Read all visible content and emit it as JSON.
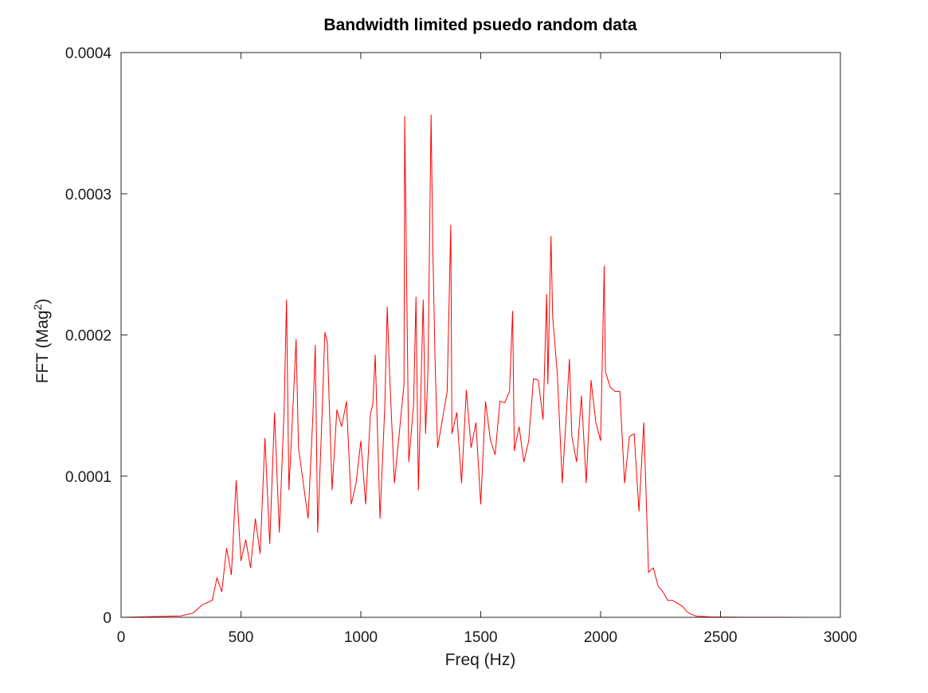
{
  "chart_data": {
    "type": "line",
    "title": "Bandwidth limited psuedo random data",
    "xlabel": "Freq (Hz)",
    "ylabel": {
      "prefix": "FFT (Mag",
      "superscript": "2",
      "suffix": ")"
    },
    "xlim": [
      0,
      3000
    ],
    "ylim": [
      0,
      0.0004
    ],
    "x_ticks": [
      0,
      500,
      1000,
      1500,
      2000,
      2500,
      3000
    ],
    "x_tick_labels": [
      "0",
      "500",
      "1000",
      "1500",
      "2000",
      "2500",
      "3000"
    ],
    "y_ticks": [
      0,
      0.0001,
      0.0002,
      0.0003,
      0.0004
    ],
    "y_tick_labels": [
      "0",
      "0.0001",
      "0.0002",
      "0.0003",
      "0.0004"
    ],
    "grid": false,
    "line_color": "#ff0000",
    "series": [
      {
        "x": [
          0,
          250,
          300,
          340,
          380,
          400,
          420,
          440,
          460,
          480,
          500,
          520,
          540,
          560,
          580,
          600,
          620,
          640,
          660,
          680,
          690,
          700,
          720,
          730,
          740,
          760,
          780,
          800,
          810,
          820,
          840,
          850,
          860,
          880,
          900,
          920,
          940,
          960,
          980,
          1000,
          1020,
          1040,
          1050,
          1060,
          1080,
          1100,
          1110,
          1120,
          1140,
          1160,
          1180,
          1183,
          1200,
          1220,
          1230,
          1240,
          1260,
          1270,
          1280,
          1293,
          1300,
          1310,
          1320,
          1340,
          1360,
          1375,
          1380,
          1400,
          1420,
          1440,
          1460,
          1480,
          1500,
          1520,
          1540,
          1560,
          1580,
          1600,
          1620,
          1633,
          1640,
          1660,
          1680,
          1700,
          1720,
          1740,
          1760,
          1775,
          1780,
          1793,
          1800,
          1820,
          1840,
          1860,
          1870,
          1880,
          1900,
          1920,
          1940,
          1960,
          1980,
          2000,
          2015,
          2020,
          2040,
          2060,
          2080,
          2100,
          2120,
          2140,
          2160,
          2180,
          2200,
          2220,
          2240,
          2260,
          2280,
          2300,
          2320,
          2340,
          2360,
          2380,
          2400,
          2450,
          2500,
          2600,
          2750,
          3000
        ],
        "y": [
          0,
          1e-06,
          3e-06,
          9e-06,
          1.2e-05,
          2.8e-05,
          1.8e-05,
          4.9e-05,
          3e-05,
          9.7e-05,
          4e-05,
          5.5e-05,
          3.5e-05,
          7e-05,
          4.5e-05,
          0.000127,
          5.2e-05,
          0.000145,
          6e-05,
          0.000147,
          0.000225,
          9e-05,
          0.00016,
          0.000197,
          0.00012,
          9.5e-05,
          7e-05,
          0.000143,
          0.000193,
          6e-05,
          0.000152,
          0.000202,
          0.000195,
          9e-05,
          0.000147,
          0.000135,
          0.000153,
          8e-05,
          9.5e-05,
          0.000125,
          8e-05,
          0.000144,
          0.000151,
          0.000186,
          7e-05,
          0.00015,
          0.00022,
          0.000172,
          9.5e-05,
          0.00013,
          0.000165,
          0.000355,
          0.00011,
          0.000151,
          0.000227,
          9e-05,
          0.000225,
          0.00013,
          0.000175,
          0.000356,
          0.000263,
          0.000179,
          0.00012,
          0.00014,
          0.00016,
          0.000278,
          0.00013,
          0.000145,
          9.5e-05,
          0.000161,
          0.00012,
          0.000138,
          8e-05,
          0.000153,
          0.000126,
          0.000115,
          0.000153,
          0.000152,
          0.00016,
          0.000217,
          0.000118,
          0.000135,
          0.00011,
          0.000125,
          0.000169,
          0.000168,
          0.00014,
          0.000229,
          0.000165,
          0.00027,
          0.000213,
          0.000171,
          9.5e-05,
          0.000153,
          0.000183,
          0.000128,
          0.00011,
          0.000157,
          9.5e-05,
          0.000168,
          0.000138,
          0.000125,
          0.000249,
          0.000174,
          0.000163,
          0.00016,
          0.00016,
          9.5e-05,
          0.000128,
          0.00013,
          7.5e-05,
          0.000138,
          3.2e-05,
          3.5e-05,
          2.2e-05,
          1.8e-05,
          1.2e-05,
          1.2e-05,
          1e-05,
          8e-06,
          4e-06,
          2e-06,
          8e-07,
          4e-07,
          2e-07,
          1e-07,
          5e-08,
          0
        ]
      }
    ]
  }
}
